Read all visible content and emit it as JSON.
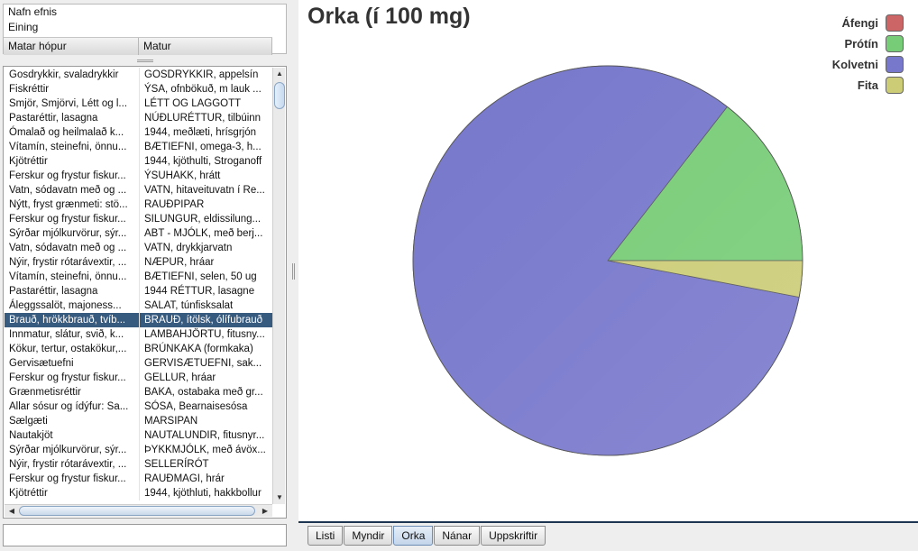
{
  "properties": {
    "rows": [
      "Nafn efnis",
      "Eining"
    ],
    "columns": [
      "Matar hópur",
      "Matur"
    ]
  },
  "foods": [
    [
      "Gosdrykkir, svaladrykkir",
      "GOSDRYKKIR, appelsín"
    ],
    [
      "Fiskréttir",
      "ÝSA, ofnbökuð, m lauk ..."
    ],
    [
      "Smjör, Smjörvi, Létt og l...",
      "LÉTT OG LAGGOTT"
    ],
    [
      "Pastaréttir, lasagna",
      "NÚÐLURÉTTUR, tilbúinn"
    ],
    [
      "Ómalað og heilmalað k...",
      "1944, meðlæti, hrísgrjón"
    ],
    [
      "Vítamín, steinefni, önnu...",
      "BÆTIEFNI, omega-3, h..."
    ],
    [
      "Kjötréttir",
      "1944, kjöthulti, Stroganoff"
    ],
    [
      "Ferskur og frystur fiskur...",
      "ÝSUHAKK, hrátt"
    ],
    [
      "Vatn, sódavatn með og ...",
      "VATN, hitaveituvatn í Re..."
    ],
    [
      "Nýtt, fryst grænmeti: stö...",
      "RAUÐPIPAR"
    ],
    [
      "Ferskur og frystur fiskur...",
      "SILUNGUR, eldissilung..."
    ],
    [
      "Sýrðar mjólkurvörur, sýr...",
      "ABT - MJÓLK, með berj..."
    ],
    [
      "Vatn, sódavatn með og ...",
      "VATN, drykkjarvatn"
    ],
    [
      "Nýir, frystir rótarávextir, ...",
      "NÆPUR, hráar"
    ],
    [
      "Vítamín, steinefni, önnu...",
      "BÆTIEFNI, selen, 50 ug"
    ],
    [
      "Pastaréttir, lasagna",
      "1944 RÉTTUR, lasagne"
    ],
    [
      "Áleggssalöt, majoness...",
      "SALAT, túnfisksalat"
    ],
    [
      "Brauð, hrökkbrauð, tvíb...",
      "BRAUÐ, ítölsk, ólífubrauð"
    ],
    [
      "Innmatur, slátur, svið, k...",
      "LAMBAHJÖRTU, fitusny..."
    ],
    [
      "Kökur, tertur, ostakökur,...",
      "BRÚNKAKA (formkaka)"
    ],
    [
      "Gervisætuefni",
      "GERVISÆTUEFNI, sak..."
    ],
    [
      "Ferskur og frystur fiskur...",
      "GELLUR, hráar"
    ],
    [
      "Grænmetisréttir",
      "BAKA, ostabaka með gr..."
    ],
    [
      "Allar sósur og ídýfur: Sa...",
      "SÓSA, Bearnaisesósa"
    ],
    [
      "Sælgæti",
      "MARSIPAN"
    ],
    [
      "Nautakjöt",
      "NAUTALUNDIR, fitusnyr..."
    ],
    [
      "Sýrðar mjólkurvörur, sýr...",
      "ÞYKKMJÓLK, með ávöx..."
    ],
    [
      "Nýir, frystir rótarávextir, ...",
      "SELLERÍRÓT"
    ],
    [
      "Ferskur og frystur fiskur...",
      "RAUÐMAGI, hrár"
    ],
    [
      "Kjötréttir",
      "1944, kjöthluti, hakkbollur"
    ]
  ],
  "selected_index": 17,
  "search": {
    "value": ""
  },
  "chart_data": {
    "type": "pie",
    "title": "Orka (í 100 mg)",
    "series": [
      {
        "name": "Áfengi",
        "value": 0,
        "color": "#cc6666"
      },
      {
        "name": "Prótín",
        "value": 14.5,
        "color": "#77cc77"
      },
      {
        "name": "Kolvetni",
        "value": 82.5,
        "color": "#7777cc"
      },
      {
        "name": "Fita",
        "value": 3,
        "color": "#cccc77"
      }
    ],
    "legend_position": "top-right"
  },
  "tabs": [
    {
      "label": "Listi",
      "active": false
    },
    {
      "label": "Myndir",
      "active": false
    },
    {
      "label": "Orka",
      "active": true
    },
    {
      "label": "Nánar",
      "active": false
    },
    {
      "label": "Uppskriftir",
      "active": false
    }
  ]
}
